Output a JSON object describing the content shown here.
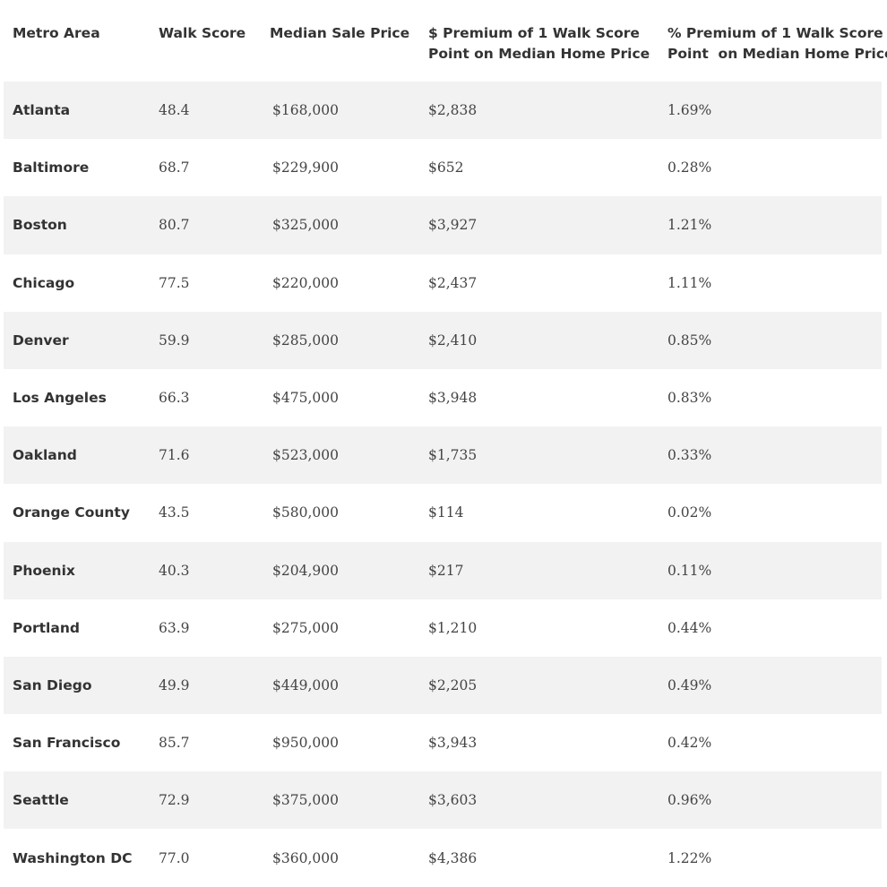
{
  "headers": {
    "metro": "Metro Area",
    "walk_score": "Walk Score",
    "median_price": "Median Sale Price",
    "dollar_premium_line1": "$ Premium of 1 Walk Score",
    "dollar_premium_line2": "Point on Median Home Price",
    "pct_premium_line1": "% Premium of 1 Walk Score",
    "pct_premium_line2": "Point  on Median Home Price"
  },
  "rows": [
    {
      "metro": "Atlanta",
      "walk_score": "48.4",
      "median_price": "$168,000",
      "dollar_premium": "$2,838",
      "pct_premium": "1.69%"
    },
    {
      "metro": "Baltimore",
      "walk_score": "68.7",
      "median_price": "$229,900",
      "dollar_premium": "$652",
      "pct_premium": "0.28%"
    },
    {
      "metro": "Boston",
      "walk_score": "80.7",
      "median_price": "$325,000",
      "dollar_premium": "$3,927",
      "pct_premium": "1.21%"
    },
    {
      "metro": "Chicago",
      "walk_score": "77.5",
      "median_price": "$220,000",
      "dollar_premium": "$2,437",
      "pct_premium": "1.11%"
    },
    {
      "metro": "Denver",
      "walk_score": "59.9",
      "median_price": "$285,000",
      "dollar_premium": "$2,410",
      "pct_premium": "0.85%"
    },
    {
      "metro": "Los Angeles",
      "walk_score": "66.3",
      "median_price": "$475,000",
      "dollar_premium": "$3,948",
      "pct_premium": "0.83%"
    },
    {
      "metro": "Oakland",
      "walk_score": "71.6",
      "median_price": "$523,000",
      "dollar_premium": "$1,735",
      "pct_premium": "0.33%"
    },
    {
      "metro": "Orange County",
      "walk_score": "43.5",
      "median_price": "$580,000",
      "dollar_premium": "$114",
      "pct_premium": "0.02%"
    },
    {
      "metro": "Phoenix",
      "walk_score": "40.3",
      "median_price": "$204,900",
      "dollar_premium": "$217",
      "pct_premium": "0.11%"
    },
    {
      "metro": "Portland",
      "walk_score": "63.9",
      "median_price": "$275,000",
      "dollar_premium": "$1,210",
      "pct_premium": "0.44%"
    },
    {
      "metro": "San Diego",
      "walk_score": "49.9",
      "median_price": "$449,000",
      "dollar_premium": "$2,205",
      "pct_premium": "0.49%"
    },
    {
      "metro": "San Francisco",
      "walk_score": "85.7",
      "median_price": "$950,000",
      "dollar_premium": "$3,943",
      "pct_premium": "0.42%"
    },
    {
      "metro": "Seattle",
      "walk_score": "72.9",
      "median_price": "$375,000",
      "dollar_premium": "$3,603",
      "pct_premium": "0.96%"
    },
    {
      "metro": "Washington DC",
      "walk_score": "77.0",
      "median_price": "$360,000",
      "dollar_premium": "$4,386",
      "pct_premium": "1.22%"
    }
  ],
  "colors": {
    "row_shade": "#f2f2f2",
    "text": "#333333"
  }
}
